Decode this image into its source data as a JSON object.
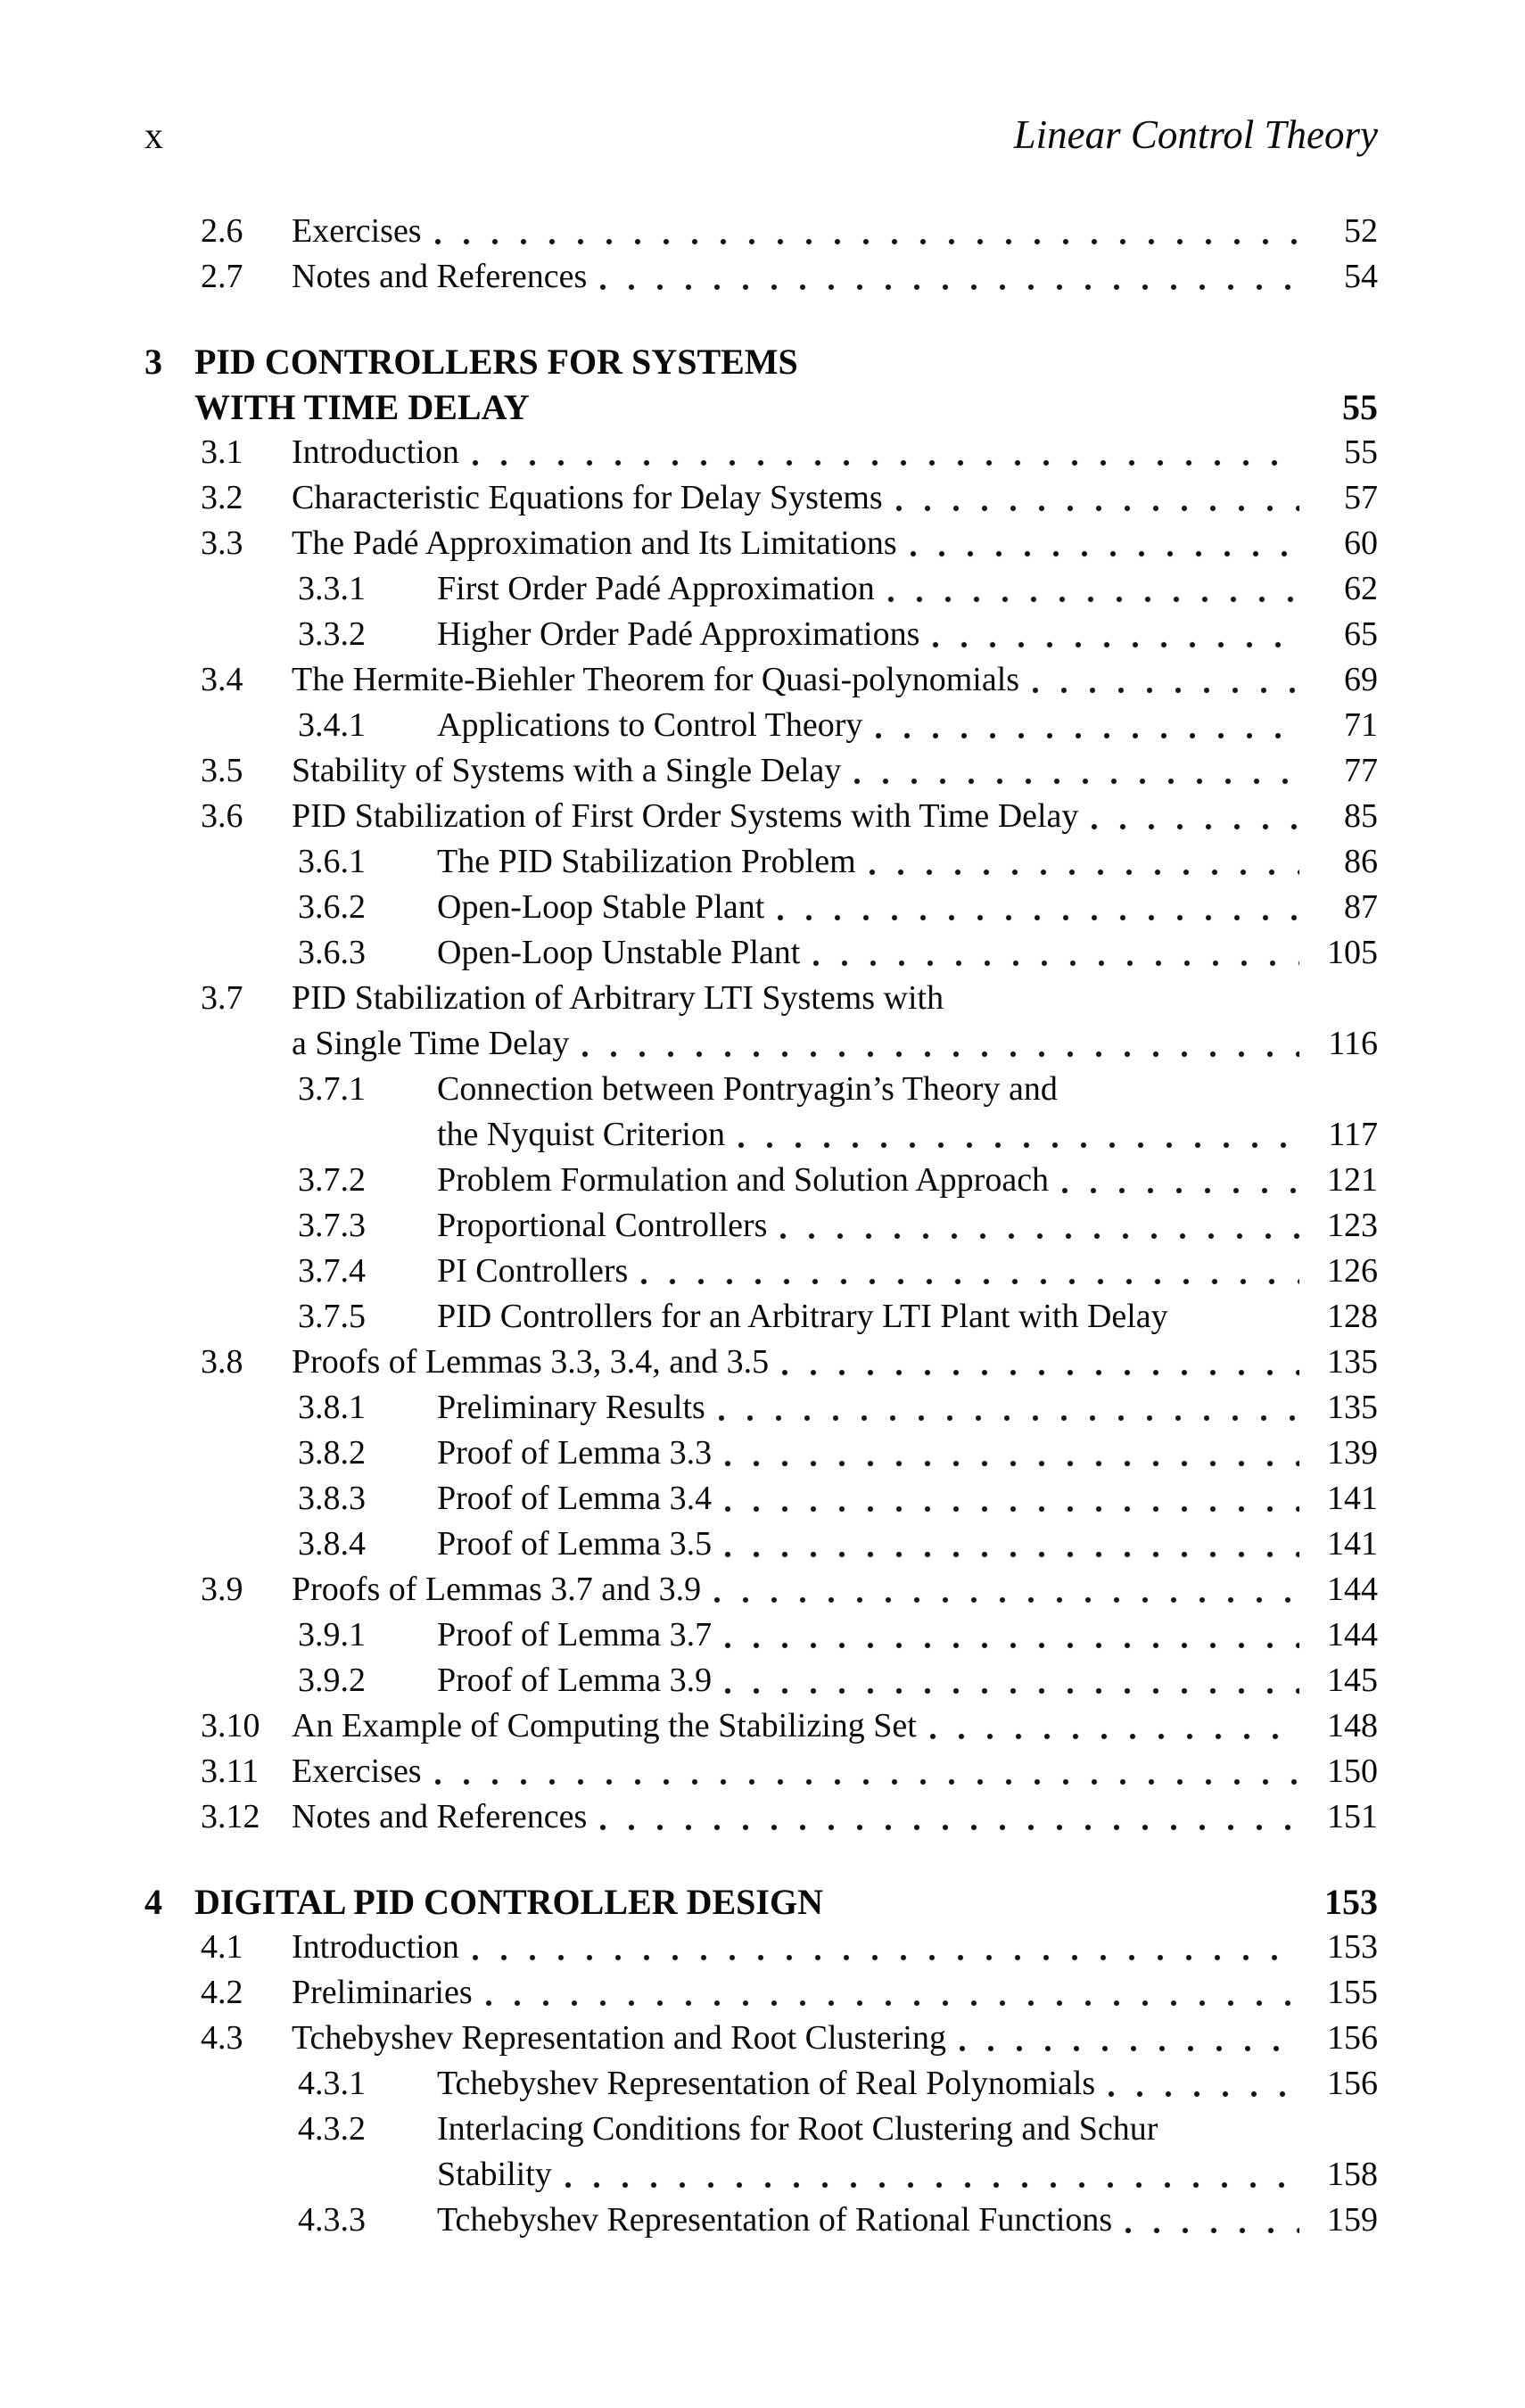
{
  "page": {
    "folio": "x",
    "running_head": "Linear Control Theory"
  },
  "toc": {
    "entries": [
      {
        "level": "section",
        "number": "2.6",
        "title": "Exercises",
        "page": "52"
      },
      {
        "level": "section",
        "number": "2.7",
        "title": "Notes and References",
        "page": "54"
      },
      {
        "level": "chapter",
        "number": "3",
        "title": "PID CONTROLLERS FOR SYSTEMS",
        "title2": "WITH TIME DELAY",
        "page": "55"
      },
      {
        "level": "section",
        "number": "3.1",
        "title": "Introduction",
        "page": "55"
      },
      {
        "level": "section",
        "number": "3.2",
        "title": "Characteristic Equations for Delay Systems",
        "page": "57"
      },
      {
        "level": "section",
        "number": "3.3",
        "title": "The Padé Approximation and Its Limitations",
        "page": "60"
      },
      {
        "level": "subsection",
        "number": "3.3.1",
        "title": "First Order Padé Approximation",
        "page": "62"
      },
      {
        "level": "subsection",
        "number": "3.3.2",
        "title": "Higher Order Padé Approximations",
        "page": "65"
      },
      {
        "level": "section",
        "number": "3.4",
        "title": "The Hermite-Biehler Theorem for Quasi-polynomials",
        "page": "69"
      },
      {
        "level": "subsection",
        "number": "3.4.1",
        "title": "Applications to Control Theory",
        "page": "71"
      },
      {
        "level": "section",
        "number": "3.5",
        "title": "Stability of Systems with a Single Delay",
        "page": "77"
      },
      {
        "level": "section",
        "number": "3.6",
        "title": "PID Stabilization of First Order Systems with Time Delay",
        "page": "85"
      },
      {
        "level": "subsection",
        "number": "3.6.1",
        "title": "The PID Stabilization Problem",
        "page": "86"
      },
      {
        "level": "subsection",
        "number": "3.6.2",
        "title": "Open-Loop Stable Plant",
        "page": "87"
      },
      {
        "level": "subsection",
        "number": "3.6.3",
        "title": "Open-Loop Unstable Plant",
        "page": "105"
      },
      {
        "level": "section",
        "number": "3.7",
        "title": "PID Stabilization of Arbitrary LTI Systems with",
        "title2": "a Single Time Delay",
        "page": "116"
      },
      {
        "level": "subsection",
        "number": "3.7.1",
        "title": "Connection between Pontryagin’s Theory and",
        "title2": "the Nyquist Criterion",
        "page": "117"
      },
      {
        "level": "subsection",
        "number": "3.7.2",
        "title": "Problem Formulation and Solution Approach",
        "page": "121"
      },
      {
        "level": "subsection",
        "number": "3.7.3",
        "title": "Proportional Controllers",
        "page": "123"
      },
      {
        "level": "subsection",
        "number": "3.7.4",
        "title": "PI Controllers",
        "page": "126"
      },
      {
        "level": "subsection",
        "number": "3.7.5",
        "title": "PID Controllers for an Arbitrary LTI Plant with Delay",
        "page": "128",
        "leader_dots": false
      },
      {
        "level": "section",
        "number": "3.8",
        "title": "Proofs of Lemmas 3.3, 3.4, and 3.5",
        "page": "135"
      },
      {
        "level": "subsection",
        "number": "3.8.1",
        "title": "Preliminary Results",
        "page": "135"
      },
      {
        "level": "subsection",
        "number": "3.8.2",
        "title": "Proof of Lemma 3.3",
        "page": "139"
      },
      {
        "level": "subsection",
        "number": "3.8.3",
        "title": "Proof of Lemma 3.4",
        "page": "141"
      },
      {
        "level": "subsection",
        "number": "3.8.4",
        "title": "Proof of Lemma 3.5",
        "page": "141"
      },
      {
        "level": "section",
        "number": "3.9",
        "title": "Proofs of Lemmas 3.7 and 3.9",
        "page": "144"
      },
      {
        "level": "subsection",
        "number": "3.9.1",
        "title": "Proof of Lemma 3.7",
        "page": "144"
      },
      {
        "level": "subsection",
        "number": "3.9.2",
        "title": "Proof of Lemma 3.9",
        "page": "145"
      },
      {
        "level": "section",
        "number": "3.10",
        "title": "An Example of Computing the Stabilizing Set",
        "page": "148"
      },
      {
        "level": "section",
        "number": "3.11",
        "title": "Exercises",
        "page": "150"
      },
      {
        "level": "section",
        "number": "3.12",
        "title": "Notes and References",
        "page": "151"
      },
      {
        "level": "chapter",
        "number": "4",
        "title": "DIGITAL PID CONTROLLER DESIGN",
        "page": "153"
      },
      {
        "level": "section",
        "number": "4.1",
        "title": "Introduction",
        "page": "153"
      },
      {
        "level": "section",
        "number": "4.2",
        "title": "Preliminaries",
        "page": "155"
      },
      {
        "level": "section",
        "number": "4.3",
        "title": "Tchebyshev Representation and Root Clustering",
        "page": "156"
      },
      {
        "level": "subsection",
        "number": "4.3.1",
        "title": "Tchebyshev Representation of Real Polynomials",
        "page": "156"
      },
      {
        "level": "subsection",
        "number": "4.3.2",
        "title": "Interlacing Conditions for Root Clustering and Schur",
        "title2": "Stability",
        "page": "158"
      },
      {
        "level": "subsection",
        "number": "4.3.3",
        "title": "Tchebyshev Representation of Rational Functions",
        "page": "159"
      }
    ]
  }
}
